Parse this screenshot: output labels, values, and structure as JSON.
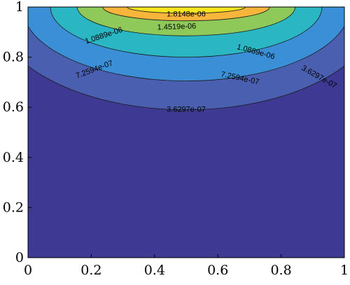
{
  "chart_data": {
    "type": "contour",
    "xlim": [
      0,
      1
    ],
    "ylim": [
      0,
      1
    ],
    "x_ticks": [
      "0",
      "0.2",
      "0.4",
      "0.6",
      "0.8",
      "1"
    ],
    "y_ticks": [
      "0",
      "0.2",
      "0.4",
      "0.6",
      "0.8",
      "1"
    ],
    "grid": false,
    "legend": "none",
    "background_color": "#3e3993",
    "levels": [
      {
        "value": "3.6297e-07",
        "color": "#4a5fb0",
        "ymin_at_center": 0.59
      },
      {
        "value": "7.2594e-07",
        "color": "#3b8fd7",
        "ymin_at_center": 0.705
      },
      {
        "value": "1.0889e-06",
        "color": "#2ab7c3",
        "ymin_at_center": 0.8
      },
      {
        "value": "1.4519e-06",
        "color": "#8ec95a",
        "ymin_at_center": 0.885
      },
      {
        "value": "1.8148e-06",
        "color": "#f7b53c",
        "ymin_at_center": 0.945
      },
      {
        "value": "",
        "color": "#f4e51f",
        "ymin_at_center": 0.975
      }
    ],
    "contour_labels": [
      {
        "text": "3.6297e-07",
        "x": 0.5,
        "y": 0.59
      },
      {
        "text": "3.6297e-07",
        "x": 0.92,
        "y": 0.72
      },
      {
        "text": "7.2594e-07",
        "x": 0.21,
        "y": 0.75
      },
      {
        "text": "7.2594e-07",
        "x": 0.67,
        "y": 0.715
      },
      {
        "text": "1.0889e-06",
        "x": 0.24,
        "y": 0.885
      },
      {
        "text": "1.0889e-06",
        "x": 0.72,
        "y": 0.82
      },
      {
        "text": "1.4519e-06",
        "x": 0.47,
        "y": 0.92
      },
      {
        "text": "1.8148e-06",
        "x": 0.5,
        "y": 0.97
      }
    ]
  }
}
